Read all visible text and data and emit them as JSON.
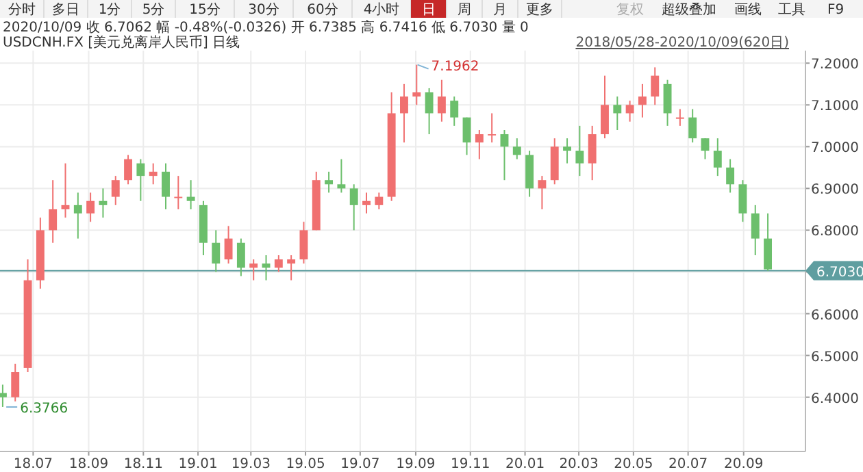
{
  "chart_data": {
    "type": "candlestick",
    "title": "USDCNH.FX [美元兑离岸人民币] 日线",
    "subtitle": "2020/10/09 收 6.7062 幅 -0.48%(-0.0326) 开 6.7385 高 6.7416 低 6.7030 量 0",
    "x": [
      "2018-05-28",
      "2018-06-11",
      "2018-06-25",
      "2018-07-09",
      "2018-07-23",
      "2018-08-06",
      "2018-08-20",
      "2018-09-03",
      "2018-09-17",
      "2018-10-01",
      "2018-10-15",
      "2018-10-29",
      "2018-11-12",
      "2018-11-26",
      "2018-12-10",
      "2018-12-24",
      "2019-01-07",
      "2019-01-21",
      "2019-02-04",
      "2019-02-18",
      "2019-03-04",
      "2019-03-18",
      "2019-04-01",
      "2019-04-15",
      "2019-04-29",
      "2019-05-13",
      "2019-05-27",
      "2019-06-10",
      "2019-06-24",
      "2019-07-08",
      "2019-07-22",
      "2019-08-05",
      "2019-08-19",
      "2019-09-02",
      "2019-09-16",
      "2019-09-30",
      "2019-10-14",
      "2019-10-28",
      "2019-11-11",
      "2019-11-25",
      "2019-12-09",
      "2019-12-23",
      "2020-01-06",
      "2020-01-20",
      "2020-02-03",
      "2020-02-17",
      "2020-03-02",
      "2020-03-16",
      "2020-03-30",
      "2020-04-13",
      "2020-04-27",
      "2020-05-11",
      "2020-05-25",
      "2020-06-08",
      "2020-06-22",
      "2020-07-06",
      "2020-07-20",
      "2020-08-03",
      "2020-08-17",
      "2020-08-31",
      "2020-09-14",
      "2020-09-28"
    ],
    "ohlc": [
      [
        6.41,
        6.43,
        6.3766,
        6.4
      ],
      [
        6.4,
        6.48,
        6.39,
        6.46
      ],
      [
        6.47,
        6.73,
        6.46,
        6.68
      ],
      [
        6.68,
        6.83,
        6.66,
        6.8
      ],
      [
        6.8,
        6.92,
        6.77,
        6.85
      ],
      [
        6.85,
        6.96,
        6.83,
        6.86
      ],
      [
        6.86,
        6.89,
        6.78,
        6.84
      ],
      [
        6.84,
        6.89,
        6.82,
        6.87
      ],
      [
        6.87,
        6.9,
        6.83,
        6.86
      ],
      [
        6.88,
        6.93,
        6.86,
        6.92
      ],
      [
        6.92,
        6.98,
        6.91,
        6.97
      ],
      [
        6.96,
        6.97,
        6.87,
        6.93
      ],
      [
        6.93,
        6.96,
        6.91,
        6.94
      ],
      [
        6.94,
        6.96,
        6.85,
        6.88
      ],
      [
        6.88,
        6.93,
        6.85,
        6.88
      ],
      [
        6.88,
        6.92,
        6.85,
        6.87
      ],
      [
        6.86,
        6.87,
        6.74,
        6.77
      ],
      [
        6.77,
        6.8,
        6.7,
        6.72
      ],
      [
        6.73,
        6.81,
        6.72,
        6.78
      ],
      [
        6.77,
        6.78,
        6.69,
        6.71
      ],
      [
        6.71,
        6.73,
        6.68,
        6.72
      ],
      [
        6.72,
        6.74,
        6.68,
        6.71
      ],
      [
        6.71,
        6.74,
        6.7,
        6.73
      ],
      [
        6.72,
        6.74,
        6.68,
        6.73
      ],
      [
        6.73,
        6.82,
        6.72,
        6.8
      ],
      [
        6.8,
        6.94,
        6.8,
        6.92
      ],
      [
        6.92,
        6.94,
        6.89,
        6.91
      ],
      [
        6.91,
        6.97,
        6.89,
        6.9
      ],
      [
        6.9,
        6.91,
        6.8,
        6.86
      ],
      [
        6.86,
        6.89,
        6.84,
        6.87
      ],
      [
        6.86,
        6.89,
        6.85,
        6.88
      ],
      [
        6.88,
        7.13,
        6.87,
        7.08
      ],
      [
        7.08,
        7.15,
        7.01,
        7.12
      ],
      [
        7.12,
        7.1962,
        7.1,
        7.13
      ],
      [
        7.13,
        7.14,
        7.03,
        7.08
      ],
      [
        7.08,
        7.16,
        7.06,
        7.12
      ],
      [
        7.11,
        7.12,
        7.05,
        7.07
      ],
      [
        7.07,
        7.07,
        6.98,
        7.01
      ],
      [
        7.01,
        7.04,
        6.97,
        7.03
      ],
      [
        7.03,
        7.08,
        7.01,
        7.03
      ],
      [
        7.03,
        7.04,
        6.92,
        7.0
      ],
      [
        7.0,
        7.02,
        6.97,
        6.98
      ],
      [
        6.98,
        6.99,
        6.88,
        6.9
      ],
      [
        6.9,
        6.93,
        6.85,
        6.92
      ],
      [
        6.92,
        7.02,
        6.91,
        7.0
      ],
      [
        7.0,
        7.02,
        6.96,
        6.99
      ],
      [
        6.99,
        7.05,
        6.93,
        6.96
      ],
      [
        6.96,
        7.05,
        6.92,
        7.03
      ],
      [
        7.03,
        7.17,
        7.02,
        7.1
      ],
      [
        7.1,
        7.12,
        7.04,
        7.08
      ],
      [
        7.08,
        7.11,
        7.06,
        7.1
      ],
      [
        7.1,
        7.15,
        7.07,
        7.12
      ],
      [
        7.12,
        7.19,
        7.1,
        7.17
      ],
      [
        7.15,
        7.16,
        7.05,
        7.08
      ],
      [
        7.07,
        7.09,
        7.05,
        7.07
      ],
      [
        7.07,
        7.09,
        7.01,
        7.02
      ],
      [
        7.02,
        7.02,
        6.97,
        6.99
      ],
      [
        6.99,
        7.02,
        6.93,
        6.95
      ],
      [
        6.95,
        6.97,
        6.89,
        6.91
      ],
      [
        6.91,
        6.92,
        6.82,
        6.84
      ],
      [
        6.84,
        6.86,
        6.74,
        6.78
      ],
      [
        6.78,
        6.84,
        6.703,
        6.7062
      ]
    ],
    "xlim": [
      "2018-05-25",
      "2020-11-09"
    ],
    "xticks": [
      {
        "value": "2018-07-01",
        "label": "18.07"
      },
      {
        "value": "2018-09-01",
        "label": "18.09"
      },
      {
        "value": "2018-11-01",
        "label": "18.11"
      },
      {
        "value": "2019-01-01",
        "label": "19.01"
      },
      {
        "value": "2019-03-01",
        "label": "19.03"
      },
      {
        "value": "2019-05-01",
        "label": "19.05"
      },
      {
        "value": "2019-07-01",
        "label": "19.07"
      },
      {
        "value": "2019-09-01",
        "label": "19.09"
      },
      {
        "value": "2019-11-01",
        "label": "19.11"
      },
      {
        "value": "2020-01-01",
        "label": "20.01"
      },
      {
        "value": "2020-03-01",
        "label": "20.03"
      },
      {
        "value": "2020-05-01",
        "label": "20.05"
      },
      {
        "value": "2020-07-01",
        "label": "20.07"
      },
      {
        "value": "2020-09-01",
        "label": "20.09"
      }
    ],
    "ylim": [
      6.27,
      7.23
    ],
    "yticks": [
      {
        "value": 6.4,
        "label": "6.4000"
      },
      {
        "value": 6.5,
        "label": "6.5000"
      },
      {
        "value": 6.6,
        "label": "6.6000"
      },
      {
        "value": 6.7,
        "label": null
      },
      {
        "value": 6.8,
        "label": "6.8000"
      },
      {
        "value": 6.9,
        "label": "6.9000"
      },
      {
        "value": 7.0,
        "label": "7.0000"
      },
      {
        "value": 7.1,
        "label": "7.1000"
      },
      {
        "value": 7.2,
        "label": "7.2000"
      }
    ],
    "grid": true,
    "ref_lines": [
      {
        "axis": "y",
        "value": 6.703,
        "label": "6.7030",
        "color": "#5f9ea0"
      }
    ],
    "annotations": [
      "分时",
      "多日",
      "1分",
      "5分",
      "15分",
      "30分",
      "60分",
      "4小时",
      "日",
      "周",
      "月",
      "更多",
      "复权",
      "超级叠加",
      "画线",
      "工具",
      "F9",
      "2018/05/28-2020/10/09(620日)",
      {
        "text": "7.1962",
        "x": "2019-09-03",
        "y": 7.1962
      },
      {
        "text": "6.3766",
        "x": "2018-06-01",
        "y": 6.3766
      }
    ]
  }
}
